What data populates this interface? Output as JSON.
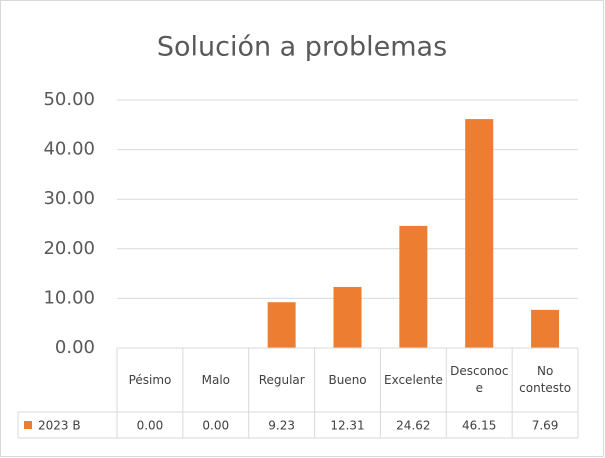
{
  "chart_data": {
    "type": "bar",
    "title": "Solución a problemas",
    "categories": [
      "Pésimo",
      "Malo",
      "Regular",
      "Bueno",
      "Excelente",
      "Desconoce",
      "No contesto"
    ],
    "series": [
      {
        "name": "2023 B",
        "color": "#ed7d31",
        "values": [
          0,
          0,
          9.23,
          12.31,
          24.62,
          46.15,
          7.69
        ],
        "value_labels": [
          "0.00",
          "0.00",
          "9.23",
          "12.31",
          "24.62",
          "46.15",
          "7.69"
        ]
      }
    ],
    "ylim": [
      0,
      50
    ],
    "yticks": [
      {
        "value": 0,
        "label": "0.00"
      },
      {
        "value": 10,
        "label": "10.00"
      },
      {
        "value": 20,
        "label": "20.00"
      },
      {
        "value": 30,
        "label": "30.00"
      },
      {
        "value": 40,
        "label": "40.00"
      },
      {
        "value": 50,
        "label": "50.00"
      }
    ],
    "grid": true,
    "data_table": true
  }
}
